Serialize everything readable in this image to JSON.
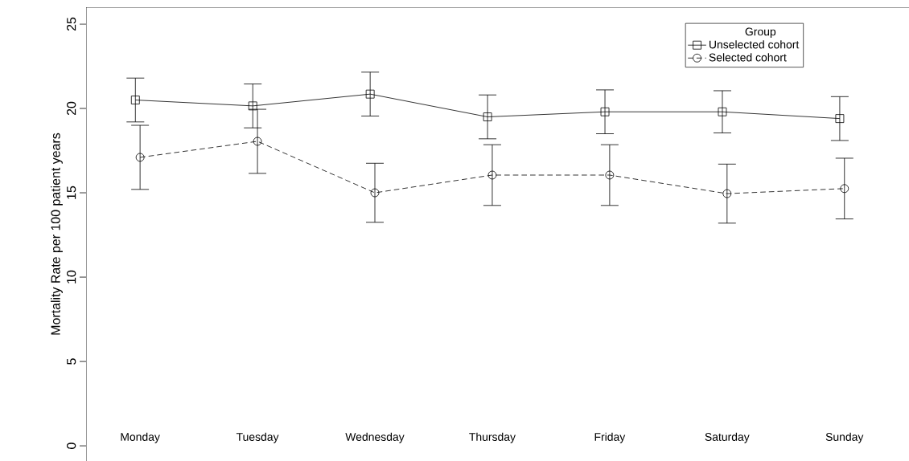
{
  "chart_data": {
    "type": "line",
    "ylabel": "Mortality Rate per 100 patient years",
    "legend_title": "Group",
    "categories": [
      "Monday",
      "Tuesday",
      "Wednesday",
      "Thursday",
      "Friday",
      "Saturday",
      "Sunday"
    ],
    "series": [
      {
        "name": "Unselected cohort",
        "color": "#000000",
        "marker": "square",
        "line_style": "solid",
        "values": [
          20.5,
          20.15,
          20.85,
          19.5,
          19.8,
          19.8,
          19.4
        ],
        "errors": [
          1.3,
          1.3,
          1.3,
          1.3,
          1.3,
          1.25,
          1.3
        ]
      },
      {
        "name": "Selected cohort",
        "color": "#000000",
        "marker": "circle",
        "line_style": "dashed",
        "values": [
          17.1,
          18.05,
          15.0,
          16.05,
          16.05,
          14.95,
          15.25
        ],
        "errors": [
          1.9,
          1.9,
          1.75,
          1.8,
          1.8,
          1.75,
          1.8
        ]
      }
    ],
    "ylim": [
      -0.9,
      26
    ],
    "yticks": [
      0,
      5,
      10,
      15,
      20,
      25
    ],
    "legend": "top right",
    "grid": false
  }
}
